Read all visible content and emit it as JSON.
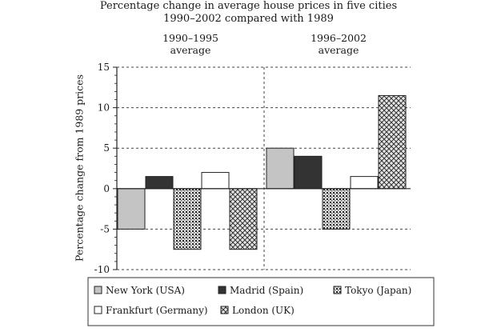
{
  "chart_data": {
    "type": "bar",
    "title": "Percentage change in average house prices in five cities",
    "subtitle": "1990–2002 compared with 1989",
    "categories": [
      "1990–1995 average",
      "1996–2002 average"
    ],
    "category_lines": [
      [
        "1990–1995",
        "average"
      ],
      [
        "1996–2002",
        "average"
      ]
    ],
    "ylabel": "Percentage change from 1989 prices",
    "ylim": [
      -10,
      15
    ],
    "yticks": [
      -10,
      -5,
      0,
      5,
      10,
      15
    ],
    "grid": "dashed horizontal",
    "legend_position": "bottom",
    "series": [
      {
        "name": "New York (USA)",
        "values": [
          -5,
          5
        ],
        "fill": "#c4c4c4"
      },
      {
        "name": "Madrid (Spain)",
        "values": [
          1.5,
          4
        ],
        "fill": "#333333"
      },
      {
        "name": "Tokyo (Japan)",
        "values": [
          -7.5,
          -5
        ],
        "fill": "dots"
      },
      {
        "name": "Frankfurt (Germany)",
        "values": [
          2,
          1.5
        ],
        "fill": "#ffffff"
      },
      {
        "name": "London (UK)",
        "values": [
          -7.5,
          11.5
        ],
        "fill": "crosshatch"
      }
    ]
  }
}
